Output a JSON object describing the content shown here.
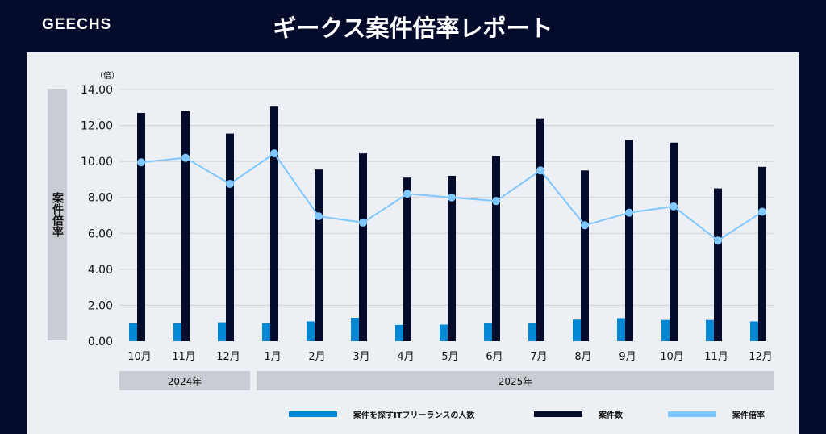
{
  "header": {
    "brand": "GEECHS",
    "title": "ギークス案件倍率レポート"
  },
  "colors": {
    "people": "#0088d4",
    "projects": "#050b2a",
    "ratio": "#7fc8ff"
  },
  "chart_data": {
    "type": "bar+line",
    "unit_label": "（倍）",
    "ylabel": "案件倍率",
    "ylim": [
      0,
      14
    ],
    "yticks": [
      "0.00",
      "2.00",
      "4.00",
      "6.00",
      "8.00",
      "10.00",
      "12.00",
      "14.00"
    ],
    "grid": true,
    "legend_position": "bottom",
    "categories": [
      "10月",
      "11月",
      "12月",
      "1月",
      "2月",
      "3月",
      "4月",
      "5月",
      "6月",
      "7月",
      "8月",
      "9月",
      "10月",
      "11月",
      "12月"
    ],
    "year_groups": [
      {
        "label": "2024年",
        "count": 3
      },
      {
        "label": "2025年",
        "count": 12
      }
    ],
    "series": [
      {
        "name": "案件を探すITフリーランスの人数",
        "type": "bar",
        "values": [
          1.0,
          1.0,
          1.05,
          1.0,
          1.1,
          1.3,
          0.9,
          0.92,
          1.02,
          1.02,
          1.2,
          1.28,
          1.18,
          1.18,
          1.1
        ]
      },
      {
        "name": "案件数",
        "type": "bar",
        "values": [
          12.7,
          12.8,
          11.55,
          13.05,
          9.55,
          10.45,
          9.1,
          9.2,
          10.3,
          12.4,
          9.5,
          11.2,
          11.05,
          8.5,
          9.7
        ]
      },
      {
        "name": "案件倍率",
        "type": "line",
        "values": [
          9.95,
          10.2,
          8.75,
          10.45,
          6.95,
          6.6,
          8.2,
          8.0,
          7.8,
          9.5,
          6.45,
          7.15,
          7.5,
          5.6,
          7.2
        ]
      }
    ]
  }
}
